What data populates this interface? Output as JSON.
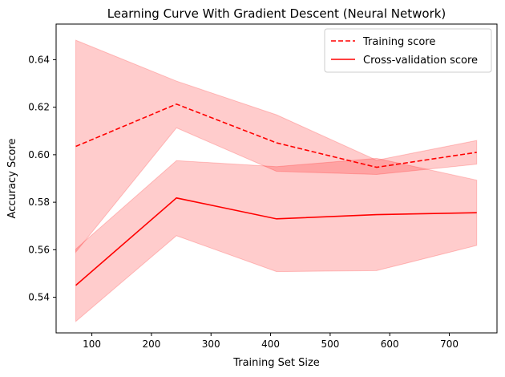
{
  "chart_data": {
    "type": "line",
    "title": "Learning Curve With Gradient Descent (Neural Network)",
    "xlabel": "Training Set Size",
    "ylabel": "Accuracy Score",
    "xlim": [
      40,
      780
    ],
    "ylim": [
      0.525,
      0.655
    ],
    "xticks": [
      100,
      200,
      300,
      400,
      500,
      600,
      700
    ],
    "yticks": [
      0.54,
      0.56,
      0.58,
      0.6,
      0.62,
      0.64
    ],
    "xtick_labels": [
      "100",
      "200",
      "300",
      "400",
      "500",
      "600",
      "700"
    ],
    "ytick_labels": [
      "0.54",
      "0.56",
      "0.58",
      "0.60",
      "0.62",
      "0.64"
    ],
    "grid": false,
    "legend_position": "top-right",
    "x": [
      73,
      242,
      410,
      578,
      746
    ],
    "series": [
      {
        "name": "Training score",
        "style": "dashed",
        "color": "#ff0000",
        "values": [
          0.6035,
          0.6213,
          0.605,
          0.5947,
          0.601
        ],
        "band_lower": [
          0.559,
          0.6113,
          0.593,
          0.5917,
          0.596
        ],
        "band_upper": [
          0.6482,
          0.631,
          0.6168,
          0.5977,
          0.606
        ]
      },
      {
        "name": "Cross-validation score",
        "style": "solid",
        "color": "#ff0000",
        "values": [
          0.545,
          0.5818,
          0.573,
          0.5748,
          0.5756
        ],
        "band_lower": [
          0.5298,
          0.5659,
          0.5508,
          0.5512,
          0.5618
        ],
        "band_upper": [
          0.5603,
          0.5975,
          0.595,
          0.5985,
          0.5893
        ]
      }
    ],
    "band_color": "#ff0000"
  }
}
